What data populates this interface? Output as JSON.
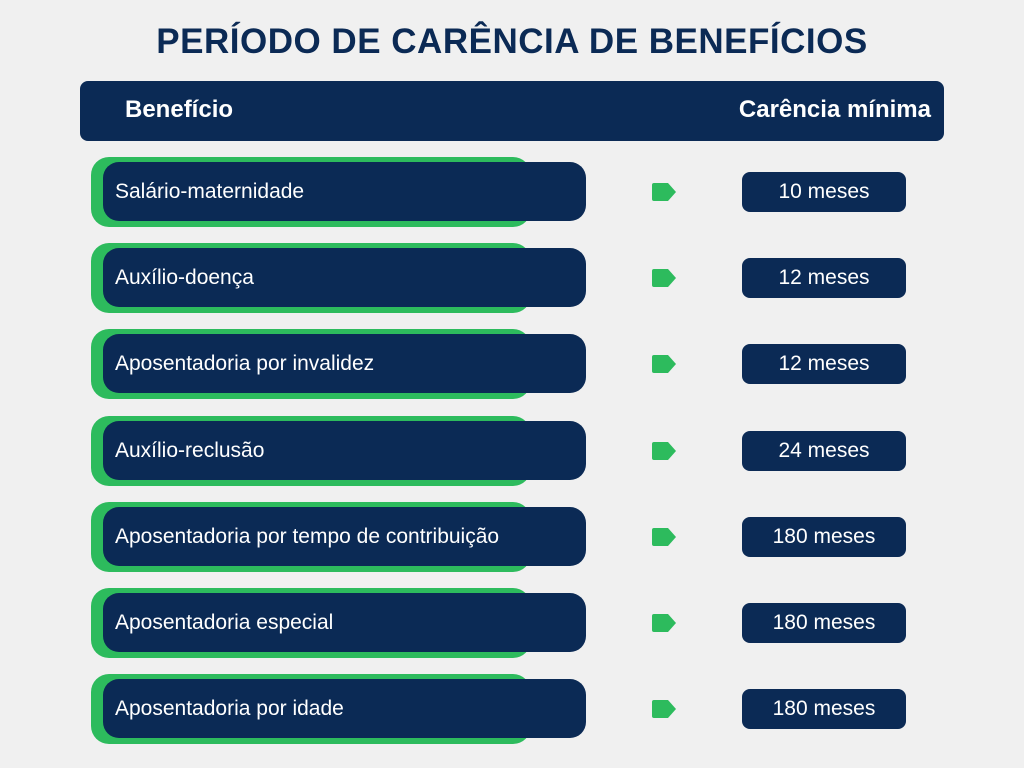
{
  "title": "PERÍODO DE CARÊNCIA DE BENEFÍCIOS",
  "header": {
    "left": "Benefício",
    "right": "Carência mínima"
  },
  "colors": {
    "navy": "#0b2a55",
    "green": "#2dbb5d",
    "background": "#f0f0f0"
  },
  "rows": [
    {
      "benefit": "Salário-maternidade",
      "period": "10 meses",
      "icon": "arrow-tag-icon"
    },
    {
      "benefit": "Auxílio-doença",
      "period": "12 meses",
      "icon": "arrow-tag-icon"
    },
    {
      "benefit": "Aposentadoria por invalidez",
      "period": "12 meses",
      "icon": "arrow-tag-icon"
    },
    {
      "benefit": "Auxílio-reclusão",
      "period": "24 meses",
      "icon": "arrow-tag-icon"
    },
    {
      "benefit": "Aposentadoria por tempo de contribuição",
      "period": "180 meses",
      "icon": "arrow-tag-icon"
    },
    {
      "benefit": "Aposentadoria especial",
      "period": "180 meses",
      "icon": "arrow-tag-icon"
    },
    {
      "benefit": "Aposentadoria por idade",
      "period": "180 meses",
      "icon": "arrow-tag-icon"
    }
  ]
}
